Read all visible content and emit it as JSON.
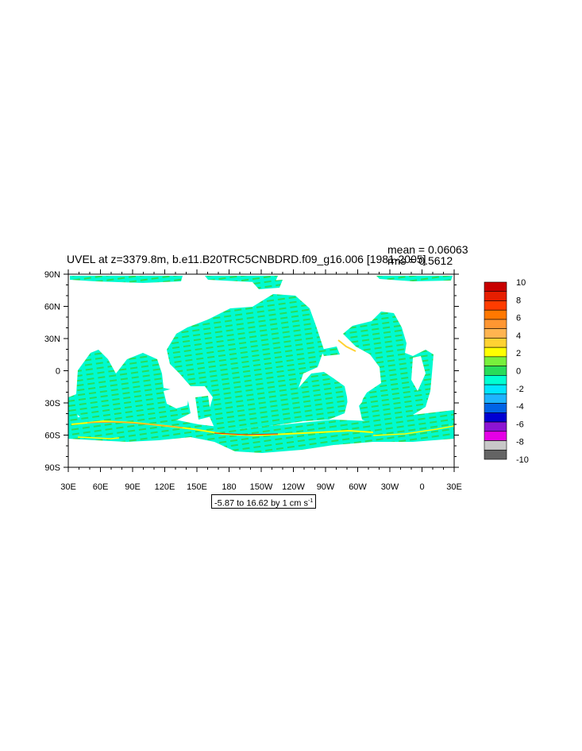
{
  "title": {
    "main": "UVEL at z=3379.8m, b.e11.B20TRC5CNBDRD.f09_g16.006 [1981-2005]",
    "mean": "mean = 0.06063",
    "rms": "rms = 0.5612"
  },
  "range_label": "-5.87 to 16.62 by 1 cm s",
  "range_unit_exponent": "-1",
  "axes": {
    "lat_labels": [
      "90N",
      "60N",
      "30N",
      "0",
      "30S",
      "60S",
      "90S"
    ],
    "lon_labels": [
      "30E",
      "60E",
      "90E",
      "120E",
      "150E",
      "180",
      "150W",
      "120W",
      "90W",
      "60W",
      "30W",
      "0",
      "30E"
    ]
  },
  "colorbar": {
    "labels": [
      "10",
      "8",
      "6",
      "4",
      "2",
      "0",
      "-2",
      "-4",
      "-6",
      "-8",
      "-10"
    ],
    "colors_top_to_bottom": [
      "#c80000",
      "#e61e00",
      "#ff3c00",
      "#ff7800",
      "#ff9632",
      "#ffb450",
      "#ffd232",
      "#ffff00",
      "#78f03c",
      "#28dc5a",
      "#00ffd2",
      "#00e6ff",
      "#1eb4ff",
      "#0064e6",
      "#0000d2",
      "#8c14d2",
      "#e600e6",
      "#c8c8c8",
      "#646464"
    ]
  },
  "map_colors": {
    "ocean_low": "#00fad0",
    "ocean_mid": "#28dc5a",
    "ocean_high": "#78f03c",
    "jet_yellow": "#ffff00",
    "jet_orange": "#ff9632",
    "jet_red": "#e61e00",
    "land": "#ffffff"
  }
}
